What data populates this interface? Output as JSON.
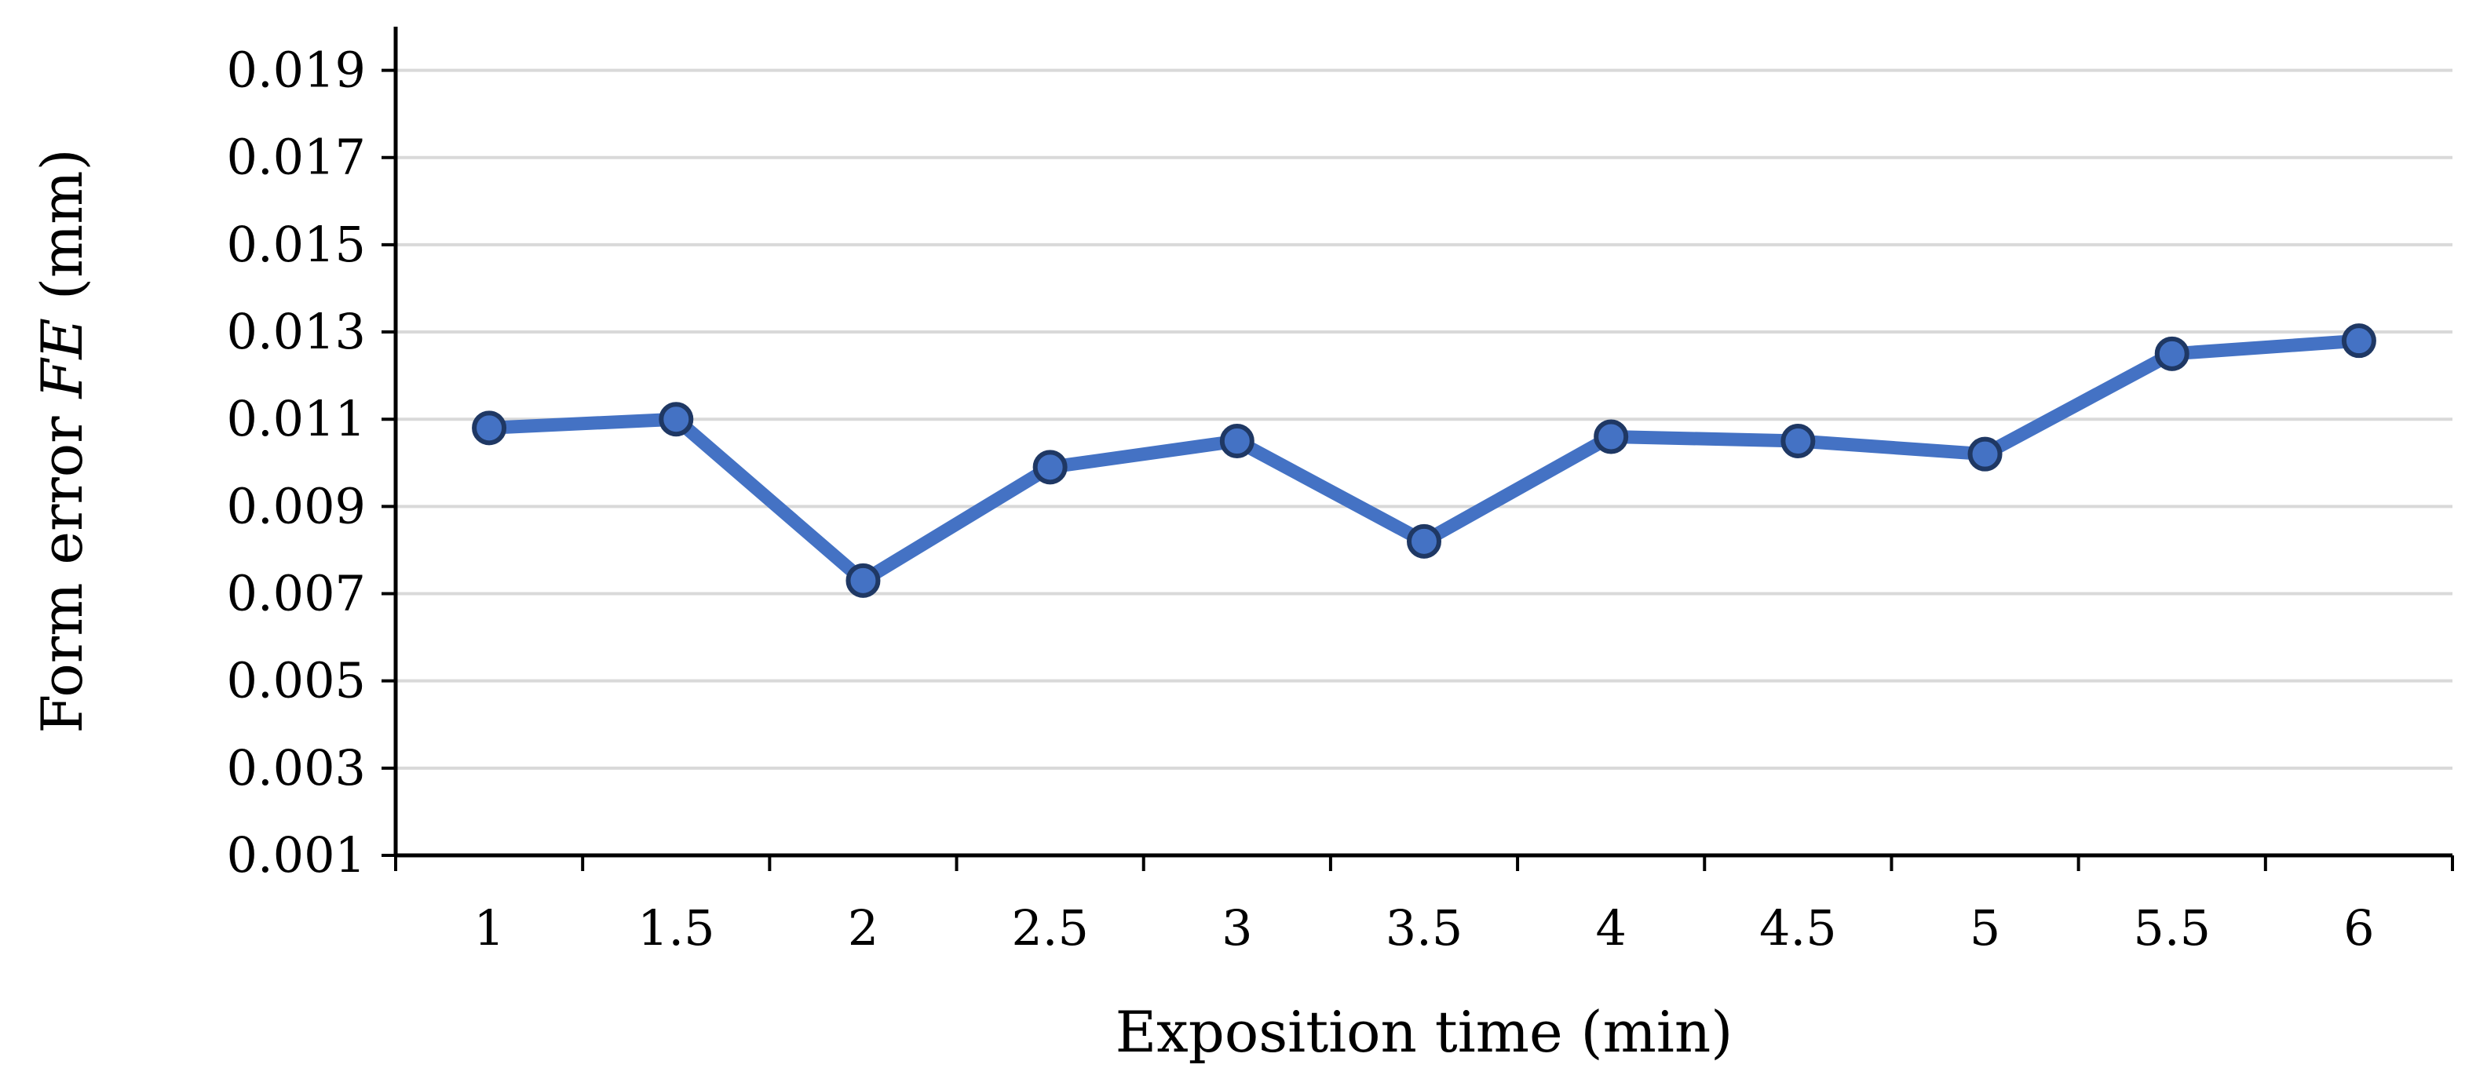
{
  "chart_data": {
    "type": "line",
    "title": "",
    "xlabel": "Exposition time (min)",
    "ylabel_prefix": "Form error ",
    "ylabel_symbol": "FE",
    "ylabel_suffix": " (mm)",
    "categories": [
      "1",
      "1.5",
      "2",
      "2.5",
      "3",
      "3.5",
      "4",
      "4.5",
      "5",
      "5.5",
      "6"
    ],
    "series": [
      {
        "values": [
          0.0108,
          0.011,
          0.0073,
          0.0099,
          0.0105,
          0.0082,
          0.0106,
          0.0105,
          0.0102,
          0.0125,
          0.0128
        ],
        "color": "#4472c4",
        "marker_edge_color": "#1f3864"
      }
    ],
    "y_ticks": [
      "0.001",
      "0.003",
      "0.005",
      "0.007",
      "0.009",
      "0.011",
      "0.013",
      "0.015",
      "0.017",
      "0.019"
    ],
    "ylim": [
      0.001,
      0.02
    ],
    "grid": true,
    "legend": "none",
    "grid_color": "#d9d9d9",
    "axis_color": "#000000"
  }
}
